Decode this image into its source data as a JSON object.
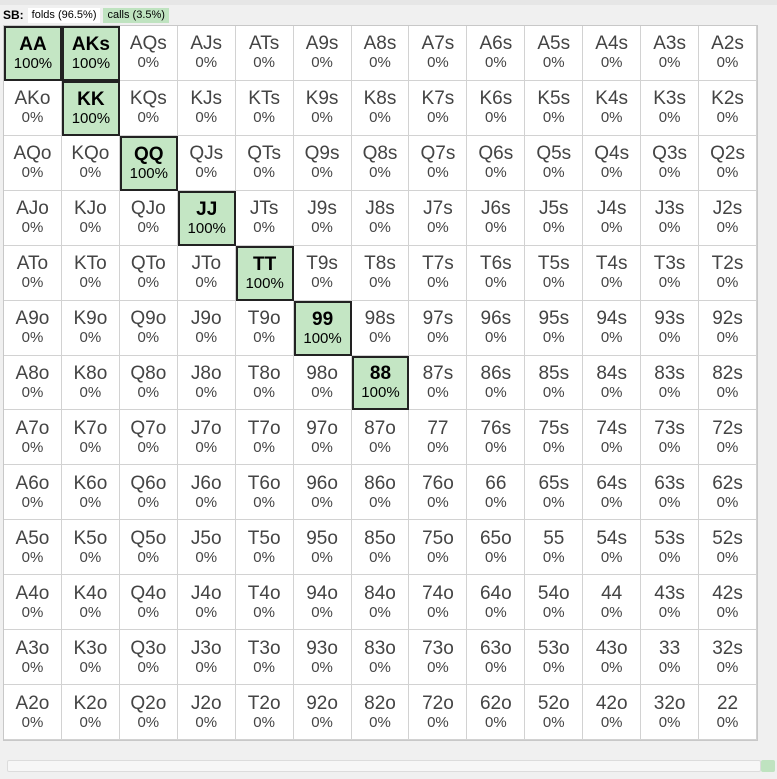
{
  "header": {
    "position_label": "SB:",
    "folds_label": "folds (96.5%)",
    "calls_label": "calls (3.5%)"
  },
  "colors": {
    "call_fill": "#c4e6c4",
    "fold_fill": "#ffffff",
    "call_border": "#222222"
  },
  "grid": {
    "rows": [
      [
        {
          "hand": "AA",
          "pct": "100%",
          "action": "call"
        },
        {
          "hand": "AKs",
          "pct": "100%",
          "action": "call"
        },
        {
          "hand": "AQs",
          "pct": "0%",
          "action": "fold"
        },
        {
          "hand": "AJs",
          "pct": "0%",
          "action": "fold"
        },
        {
          "hand": "ATs",
          "pct": "0%",
          "action": "fold"
        },
        {
          "hand": "A9s",
          "pct": "0%",
          "action": "fold"
        },
        {
          "hand": "A8s",
          "pct": "0%",
          "action": "fold"
        },
        {
          "hand": "A7s",
          "pct": "0%",
          "action": "fold"
        },
        {
          "hand": "A6s",
          "pct": "0%",
          "action": "fold"
        },
        {
          "hand": "A5s",
          "pct": "0%",
          "action": "fold"
        },
        {
          "hand": "A4s",
          "pct": "0%",
          "action": "fold"
        },
        {
          "hand": "A3s",
          "pct": "0%",
          "action": "fold"
        },
        {
          "hand": "A2s",
          "pct": "0%",
          "action": "fold"
        }
      ],
      [
        {
          "hand": "AKo",
          "pct": "0%",
          "action": "fold"
        },
        {
          "hand": "KK",
          "pct": "100%",
          "action": "call"
        },
        {
          "hand": "KQs",
          "pct": "0%",
          "action": "fold"
        },
        {
          "hand": "KJs",
          "pct": "0%",
          "action": "fold"
        },
        {
          "hand": "KTs",
          "pct": "0%",
          "action": "fold"
        },
        {
          "hand": "K9s",
          "pct": "0%",
          "action": "fold"
        },
        {
          "hand": "K8s",
          "pct": "0%",
          "action": "fold"
        },
        {
          "hand": "K7s",
          "pct": "0%",
          "action": "fold"
        },
        {
          "hand": "K6s",
          "pct": "0%",
          "action": "fold"
        },
        {
          "hand": "K5s",
          "pct": "0%",
          "action": "fold"
        },
        {
          "hand": "K4s",
          "pct": "0%",
          "action": "fold"
        },
        {
          "hand": "K3s",
          "pct": "0%",
          "action": "fold"
        },
        {
          "hand": "K2s",
          "pct": "0%",
          "action": "fold"
        }
      ],
      [
        {
          "hand": "AQo",
          "pct": "0%",
          "action": "fold"
        },
        {
          "hand": "KQo",
          "pct": "0%",
          "action": "fold"
        },
        {
          "hand": "QQ",
          "pct": "100%",
          "action": "call"
        },
        {
          "hand": "QJs",
          "pct": "0%",
          "action": "fold"
        },
        {
          "hand": "QTs",
          "pct": "0%",
          "action": "fold"
        },
        {
          "hand": "Q9s",
          "pct": "0%",
          "action": "fold"
        },
        {
          "hand": "Q8s",
          "pct": "0%",
          "action": "fold"
        },
        {
          "hand": "Q7s",
          "pct": "0%",
          "action": "fold"
        },
        {
          "hand": "Q6s",
          "pct": "0%",
          "action": "fold"
        },
        {
          "hand": "Q5s",
          "pct": "0%",
          "action": "fold"
        },
        {
          "hand": "Q4s",
          "pct": "0%",
          "action": "fold"
        },
        {
          "hand": "Q3s",
          "pct": "0%",
          "action": "fold"
        },
        {
          "hand": "Q2s",
          "pct": "0%",
          "action": "fold"
        }
      ],
      [
        {
          "hand": "AJo",
          "pct": "0%",
          "action": "fold"
        },
        {
          "hand": "KJo",
          "pct": "0%",
          "action": "fold"
        },
        {
          "hand": "QJo",
          "pct": "0%",
          "action": "fold"
        },
        {
          "hand": "JJ",
          "pct": "100%",
          "action": "call"
        },
        {
          "hand": "JTs",
          "pct": "0%",
          "action": "fold"
        },
        {
          "hand": "J9s",
          "pct": "0%",
          "action": "fold"
        },
        {
          "hand": "J8s",
          "pct": "0%",
          "action": "fold"
        },
        {
          "hand": "J7s",
          "pct": "0%",
          "action": "fold"
        },
        {
          "hand": "J6s",
          "pct": "0%",
          "action": "fold"
        },
        {
          "hand": "J5s",
          "pct": "0%",
          "action": "fold"
        },
        {
          "hand": "J4s",
          "pct": "0%",
          "action": "fold"
        },
        {
          "hand": "J3s",
          "pct": "0%",
          "action": "fold"
        },
        {
          "hand": "J2s",
          "pct": "0%",
          "action": "fold"
        }
      ],
      [
        {
          "hand": "ATo",
          "pct": "0%",
          "action": "fold"
        },
        {
          "hand": "KTo",
          "pct": "0%",
          "action": "fold"
        },
        {
          "hand": "QTo",
          "pct": "0%",
          "action": "fold"
        },
        {
          "hand": "JTo",
          "pct": "0%",
          "action": "fold"
        },
        {
          "hand": "TT",
          "pct": "100%",
          "action": "call"
        },
        {
          "hand": "T9s",
          "pct": "0%",
          "action": "fold"
        },
        {
          "hand": "T8s",
          "pct": "0%",
          "action": "fold"
        },
        {
          "hand": "T7s",
          "pct": "0%",
          "action": "fold"
        },
        {
          "hand": "T6s",
          "pct": "0%",
          "action": "fold"
        },
        {
          "hand": "T5s",
          "pct": "0%",
          "action": "fold"
        },
        {
          "hand": "T4s",
          "pct": "0%",
          "action": "fold"
        },
        {
          "hand": "T3s",
          "pct": "0%",
          "action": "fold"
        },
        {
          "hand": "T2s",
          "pct": "0%",
          "action": "fold"
        }
      ],
      [
        {
          "hand": "A9o",
          "pct": "0%",
          "action": "fold"
        },
        {
          "hand": "K9o",
          "pct": "0%",
          "action": "fold"
        },
        {
          "hand": "Q9o",
          "pct": "0%",
          "action": "fold"
        },
        {
          "hand": "J9o",
          "pct": "0%",
          "action": "fold"
        },
        {
          "hand": "T9o",
          "pct": "0%",
          "action": "fold"
        },
        {
          "hand": "99",
          "pct": "100%",
          "action": "call"
        },
        {
          "hand": "98s",
          "pct": "0%",
          "action": "fold"
        },
        {
          "hand": "97s",
          "pct": "0%",
          "action": "fold"
        },
        {
          "hand": "96s",
          "pct": "0%",
          "action": "fold"
        },
        {
          "hand": "95s",
          "pct": "0%",
          "action": "fold"
        },
        {
          "hand": "94s",
          "pct": "0%",
          "action": "fold"
        },
        {
          "hand": "93s",
          "pct": "0%",
          "action": "fold"
        },
        {
          "hand": "92s",
          "pct": "0%",
          "action": "fold"
        }
      ],
      [
        {
          "hand": "A8o",
          "pct": "0%",
          "action": "fold"
        },
        {
          "hand": "K8o",
          "pct": "0%",
          "action": "fold"
        },
        {
          "hand": "Q8o",
          "pct": "0%",
          "action": "fold"
        },
        {
          "hand": "J8o",
          "pct": "0%",
          "action": "fold"
        },
        {
          "hand": "T8o",
          "pct": "0%",
          "action": "fold"
        },
        {
          "hand": "98o",
          "pct": "0%",
          "action": "fold"
        },
        {
          "hand": "88",
          "pct": "100%",
          "action": "call"
        },
        {
          "hand": "87s",
          "pct": "0%",
          "action": "fold"
        },
        {
          "hand": "86s",
          "pct": "0%",
          "action": "fold"
        },
        {
          "hand": "85s",
          "pct": "0%",
          "action": "fold"
        },
        {
          "hand": "84s",
          "pct": "0%",
          "action": "fold"
        },
        {
          "hand": "83s",
          "pct": "0%",
          "action": "fold"
        },
        {
          "hand": "82s",
          "pct": "0%",
          "action": "fold"
        }
      ],
      [
        {
          "hand": "A7o",
          "pct": "0%",
          "action": "fold"
        },
        {
          "hand": "K7o",
          "pct": "0%",
          "action": "fold"
        },
        {
          "hand": "Q7o",
          "pct": "0%",
          "action": "fold"
        },
        {
          "hand": "J7o",
          "pct": "0%",
          "action": "fold"
        },
        {
          "hand": "T7o",
          "pct": "0%",
          "action": "fold"
        },
        {
          "hand": "97o",
          "pct": "0%",
          "action": "fold"
        },
        {
          "hand": "87o",
          "pct": "0%",
          "action": "fold"
        },
        {
          "hand": "77",
          "pct": "0%",
          "action": "fold"
        },
        {
          "hand": "76s",
          "pct": "0%",
          "action": "fold"
        },
        {
          "hand": "75s",
          "pct": "0%",
          "action": "fold"
        },
        {
          "hand": "74s",
          "pct": "0%",
          "action": "fold"
        },
        {
          "hand": "73s",
          "pct": "0%",
          "action": "fold"
        },
        {
          "hand": "72s",
          "pct": "0%",
          "action": "fold"
        }
      ],
      [
        {
          "hand": "A6o",
          "pct": "0%",
          "action": "fold"
        },
        {
          "hand": "K6o",
          "pct": "0%",
          "action": "fold"
        },
        {
          "hand": "Q6o",
          "pct": "0%",
          "action": "fold"
        },
        {
          "hand": "J6o",
          "pct": "0%",
          "action": "fold"
        },
        {
          "hand": "T6o",
          "pct": "0%",
          "action": "fold"
        },
        {
          "hand": "96o",
          "pct": "0%",
          "action": "fold"
        },
        {
          "hand": "86o",
          "pct": "0%",
          "action": "fold"
        },
        {
          "hand": "76o",
          "pct": "0%",
          "action": "fold"
        },
        {
          "hand": "66",
          "pct": "0%",
          "action": "fold"
        },
        {
          "hand": "65s",
          "pct": "0%",
          "action": "fold"
        },
        {
          "hand": "64s",
          "pct": "0%",
          "action": "fold"
        },
        {
          "hand": "63s",
          "pct": "0%",
          "action": "fold"
        },
        {
          "hand": "62s",
          "pct": "0%",
          "action": "fold"
        }
      ],
      [
        {
          "hand": "A5o",
          "pct": "0%",
          "action": "fold"
        },
        {
          "hand": "K5o",
          "pct": "0%",
          "action": "fold"
        },
        {
          "hand": "Q5o",
          "pct": "0%",
          "action": "fold"
        },
        {
          "hand": "J5o",
          "pct": "0%",
          "action": "fold"
        },
        {
          "hand": "T5o",
          "pct": "0%",
          "action": "fold"
        },
        {
          "hand": "95o",
          "pct": "0%",
          "action": "fold"
        },
        {
          "hand": "85o",
          "pct": "0%",
          "action": "fold"
        },
        {
          "hand": "75o",
          "pct": "0%",
          "action": "fold"
        },
        {
          "hand": "65o",
          "pct": "0%",
          "action": "fold"
        },
        {
          "hand": "55",
          "pct": "0%",
          "action": "fold"
        },
        {
          "hand": "54s",
          "pct": "0%",
          "action": "fold"
        },
        {
          "hand": "53s",
          "pct": "0%",
          "action": "fold"
        },
        {
          "hand": "52s",
          "pct": "0%",
          "action": "fold"
        }
      ],
      [
        {
          "hand": "A4o",
          "pct": "0%",
          "action": "fold"
        },
        {
          "hand": "K4o",
          "pct": "0%",
          "action": "fold"
        },
        {
          "hand": "Q4o",
          "pct": "0%",
          "action": "fold"
        },
        {
          "hand": "J4o",
          "pct": "0%",
          "action": "fold"
        },
        {
          "hand": "T4o",
          "pct": "0%",
          "action": "fold"
        },
        {
          "hand": "94o",
          "pct": "0%",
          "action": "fold"
        },
        {
          "hand": "84o",
          "pct": "0%",
          "action": "fold"
        },
        {
          "hand": "74o",
          "pct": "0%",
          "action": "fold"
        },
        {
          "hand": "64o",
          "pct": "0%",
          "action": "fold"
        },
        {
          "hand": "54o",
          "pct": "0%",
          "action": "fold"
        },
        {
          "hand": "44",
          "pct": "0%",
          "action": "fold"
        },
        {
          "hand": "43s",
          "pct": "0%",
          "action": "fold"
        },
        {
          "hand": "42s",
          "pct": "0%",
          "action": "fold"
        }
      ],
      [
        {
          "hand": "A3o",
          "pct": "0%",
          "action": "fold"
        },
        {
          "hand": "K3o",
          "pct": "0%",
          "action": "fold"
        },
        {
          "hand": "Q3o",
          "pct": "0%",
          "action": "fold"
        },
        {
          "hand": "J3o",
          "pct": "0%",
          "action": "fold"
        },
        {
          "hand": "T3o",
          "pct": "0%",
          "action": "fold"
        },
        {
          "hand": "93o",
          "pct": "0%",
          "action": "fold"
        },
        {
          "hand": "83o",
          "pct": "0%",
          "action": "fold"
        },
        {
          "hand": "73o",
          "pct": "0%",
          "action": "fold"
        },
        {
          "hand": "63o",
          "pct": "0%",
          "action": "fold"
        },
        {
          "hand": "53o",
          "pct": "0%",
          "action": "fold"
        },
        {
          "hand": "43o",
          "pct": "0%",
          "action": "fold"
        },
        {
          "hand": "33",
          "pct": "0%",
          "action": "fold"
        },
        {
          "hand": "32s",
          "pct": "0%",
          "action": "fold"
        }
      ],
      [
        {
          "hand": "A2o",
          "pct": "0%",
          "action": "fold"
        },
        {
          "hand": "K2o",
          "pct": "0%",
          "action": "fold"
        },
        {
          "hand": "Q2o",
          "pct": "0%",
          "action": "fold"
        },
        {
          "hand": "J2o",
          "pct": "0%",
          "action": "fold"
        },
        {
          "hand": "T2o",
          "pct": "0%",
          "action": "fold"
        },
        {
          "hand": "92o",
          "pct": "0%",
          "action": "fold"
        },
        {
          "hand": "82o",
          "pct": "0%",
          "action": "fold"
        },
        {
          "hand": "72o",
          "pct": "0%",
          "action": "fold"
        },
        {
          "hand": "62o",
          "pct": "0%",
          "action": "fold"
        },
        {
          "hand": "52o",
          "pct": "0%",
          "action": "fold"
        },
        {
          "hand": "42o",
          "pct": "0%",
          "action": "fold"
        },
        {
          "hand": "32o",
          "pct": "0%",
          "action": "fold"
        },
        {
          "hand": "22",
          "pct": "0%",
          "action": "fold"
        }
      ]
    ]
  }
}
